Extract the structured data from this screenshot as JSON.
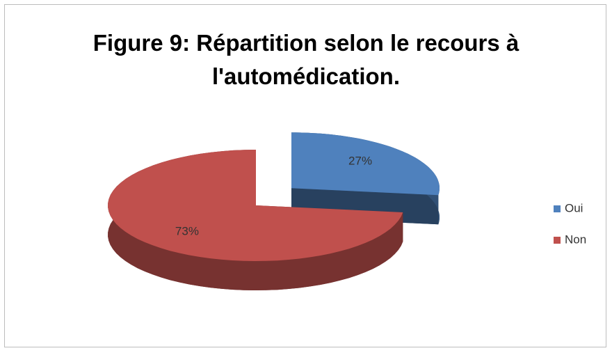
{
  "chart_data": {
    "type": "pie",
    "title": "Figure 9: Répartition selon le recours à l'automédication.",
    "categories": [
      "Oui",
      "Non"
    ],
    "values": [
      27,
      73
    ],
    "value_labels": [
      "27%",
      "73%"
    ],
    "colors": [
      "#4f81bd",
      "#c0504d"
    ],
    "legend": "right",
    "explode": [
      true,
      false
    ]
  }
}
